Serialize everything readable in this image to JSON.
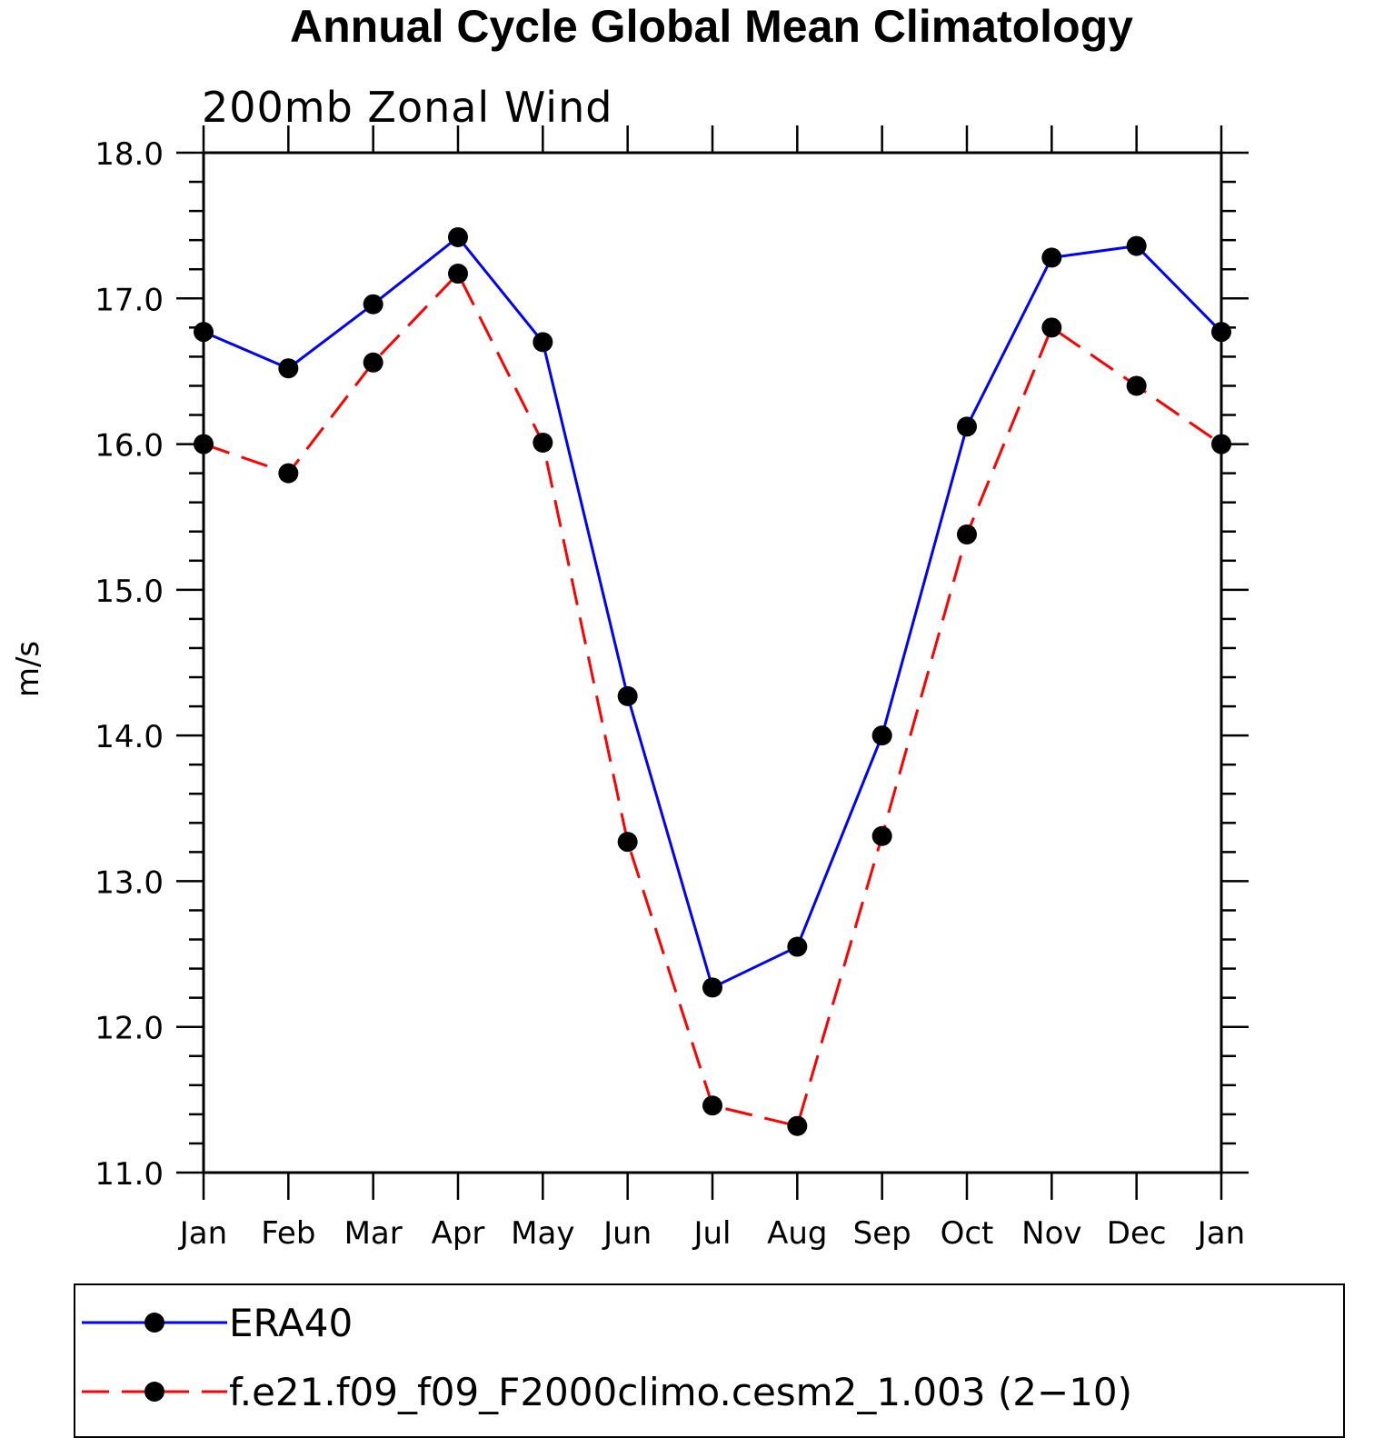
{
  "chart_data": {
    "type": "line",
    "title": "Annual Cycle Global Mean Climatology",
    "subtitle": "200mb Zonal Wind",
    "xlabel": "",
    "ylabel": "m/s",
    "categories": [
      "Jan",
      "Feb",
      "Mar",
      "Apr",
      "May",
      "Jun",
      "Jul",
      "Aug",
      "Sep",
      "Oct",
      "Nov",
      "Dec",
      "Jan"
    ],
    "ylim": [
      11.0,
      18.0
    ],
    "yticks": [
      "11.0",
      "12.0",
      "13.0",
      "14.0",
      "15.0",
      "16.0",
      "17.0",
      "18.0"
    ],
    "grid": false,
    "legend_position": "bottom",
    "series": [
      {
        "name": "ERA40",
        "color": "#0000ff",
        "style": "solid",
        "values": [
          16.77,
          16.52,
          16.96,
          17.42,
          16.7,
          14.27,
          12.27,
          12.55,
          14.0,
          16.12,
          17.28,
          17.36,
          16.77
        ]
      },
      {
        "name": "f.e21.f09_f09_F2000climo.cesm2_1.003 (2−10)",
        "color": "#ff0000",
        "style": "dashed",
        "values": [
          16.0,
          15.8,
          16.56,
          17.17,
          16.01,
          13.27,
          11.46,
          11.32,
          13.31,
          15.38,
          16.8,
          16.4,
          16.0
        ]
      }
    ]
  }
}
